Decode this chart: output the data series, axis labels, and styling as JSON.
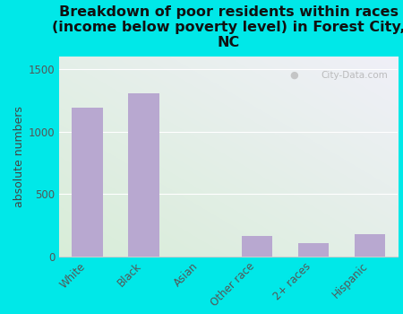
{
  "title": "Breakdown of poor residents within races\n(income below poverty level) in Forest City,\nNC",
  "categories": [
    "White",
    "Black",
    "Asian",
    "Other race",
    "2+ races",
    "Hispanic"
  ],
  "values": [
    1190,
    1310,
    0,
    165,
    105,
    175
  ],
  "bar_color": "#b8a8d0",
  "ylabel": "absolute numbers",
  "ylim": [
    0,
    1600
  ],
  "yticks": [
    0,
    500,
    1000,
    1500
  ],
  "background_color": "#00e8e8",
  "plot_bg_left_bottom": "#d8edd8",
  "plot_bg_right_top": "#f0f0f8",
  "title_fontsize": 11.5,
  "axis_label_fontsize": 9,
  "tick_fontsize": 8.5,
  "watermark": "City-Data.com",
  "grid_color": "#ffffff",
  "spine_color": "#cccccc"
}
